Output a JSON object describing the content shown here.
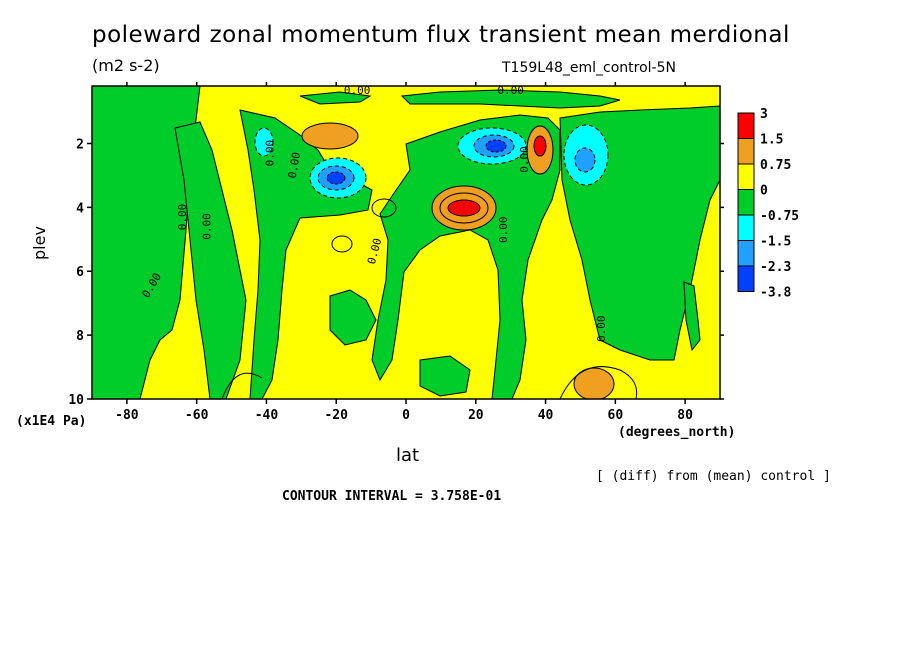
{
  "chart_data": {
    "type": "heatmap",
    "title": "poleward zonal momentum flux transient mean merdional",
    "units": "(m2 s-2)",
    "run_label": "T159L48_eml_control-5N",
    "xlabel": "lat",
    "xunits": "(degrees_north)",
    "ylabel": "plev",
    "yunits": "(x1E4 Pa)",
    "note": "[ (diff) from (mean) control ]",
    "contour_interval_text": "CONTOUR INTERVAL = 3.758E-01",
    "x_ticks": [
      -80,
      -60,
      -40,
      -20,
      0,
      20,
      40,
      60,
      80
    ],
    "y_ticks": [
      2,
      4,
      6,
      8,
      10
    ],
    "xlim": [
      -90,
      90
    ],
    "ylim": [
      0.2,
      10
    ],
    "y_inverted": true,
    "contour_labels": [
      "0.00",
      "0.00",
      "0.00",
      "0.00",
      "0.00",
      "0.00",
      "0.00",
      "0.00",
      "0.00",
      "0.00",
      "0.00"
    ],
    "colorbar": {
      "levels": [
        "3",
        "1.5",
        "0.75",
        "0",
        "-0.75",
        "-1.5",
        "-2.3",
        "-3.8"
      ],
      "colors": [
        "#ff0000",
        "#f0a020",
        "#ffff00",
        "#00cc2a",
        "#00ffff",
        "#20a0ff",
        "#0040ff"
      ]
    },
    "features": [
      {
        "name": "positive-max-near-15N",
        "lat": 16,
        "plev": 3.9,
        "level": "3"
      },
      {
        "name": "positive-max-near-38N",
        "lat": 38,
        "plev": 2.1,
        "level": "3"
      },
      {
        "name": "positive-near-25S",
        "lat": -23,
        "plev": 1.8,
        "level": "1.5"
      },
      {
        "name": "positive-near-53N-surface",
        "lat": 53,
        "plev": 9.3,
        "level": "1.5"
      },
      {
        "name": "negative-min-near-20S",
        "lat": -20,
        "plev": 3.0,
        "level": "-3.8"
      },
      {
        "name": "negative-min-near-26N",
        "lat": 26,
        "plev": 2.0,
        "level": "-3.8"
      },
      {
        "name": "negative-near-50N",
        "lat": 50,
        "plev": 2.4,
        "level": "-1.5"
      },
      {
        "name": "negative-near-42S",
        "lat": -42,
        "plev": 1.9,
        "level": "-1.5"
      }
    ]
  }
}
